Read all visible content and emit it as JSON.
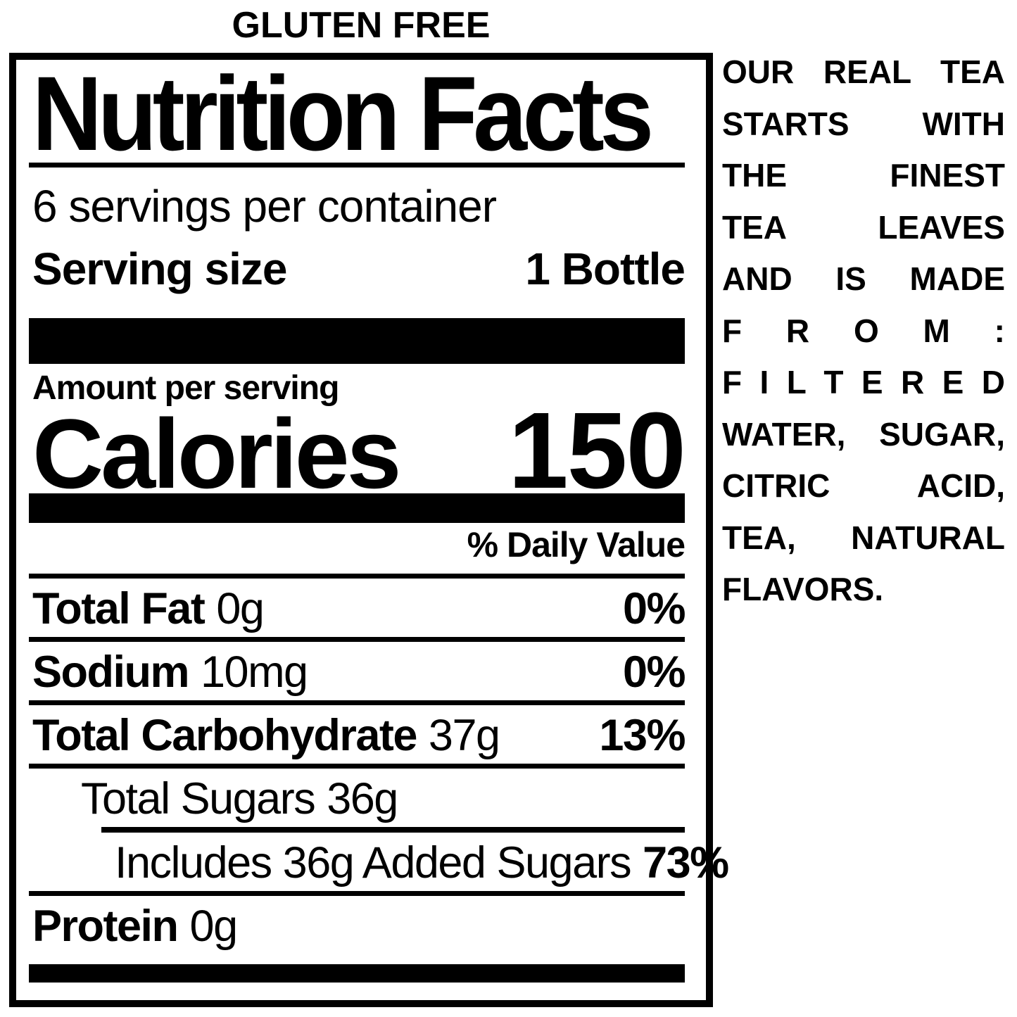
{
  "header": {
    "gluten_free": "GLUTEN FREE"
  },
  "label": {
    "title": "Nutrition Facts",
    "servings_per_container": "6 servings per container",
    "serving_size": {
      "label": "Serving size",
      "value": "1 Bottle"
    },
    "amount_per_serving": "Amount per serving",
    "calories": {
      "label": "Calories",
      "value": "150"
    },
    "daily_value_header": "% Daily Value",
    "rows": [
      {
        "name": "Total Fat",
        "amount": "0g",
        "dv": "0%"
      },
      {
        "name": "Sodium",
        "amount": "10mg",
        "dv": "0%"
      },
      {
        "name": "Total Carbohydrate",
        "amount": "37g",
        "dv": "13%"
      },
      {
        "name": "Total Sugars",
        "amount": "36g",
        "dv": ""
      },
      {
        "name": "Includes 36g Added Sugars",
        "amount": "",
        "dv": "73%"
      },
      {
        "name": "Protein",
        "amount": "0g",
        "dv": ""
      }
    ]
  },
  "side_text": {
    "lines": [
      "OUR REAL TEA",
      "STARTS WITH",
      "THE FINEST",
      "TEA LEAVES",
      "AND IS MADE",
      "F R O M :",
      "F I L T E R E D",
      "WATER, SUGAR,",
      "CITRIC ACID,",
      "TEA, NATURAL",
      "FLAVORS."
    ]
  },
  "colors": {
    "ink": "#000000",
    "background": "#ffffff"
  }
}
